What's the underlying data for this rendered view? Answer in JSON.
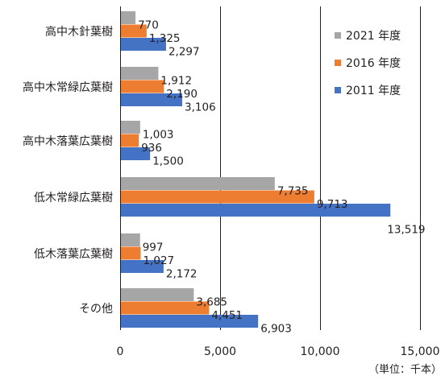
{
  "chart_data": {
    "type": "bar",
    "orientation": "horizontal",
    "categories": [
      "高中木針葉樹",
      "高中木常緑広葉樹",
      "高中木落葉広葉樹",
      "低木常緑広葉樹",
      "低木落葉広葉樹",
      "その他"
    ],
    "series": [
      {
        "name": "2021 年度",
        "color": "#a6a6a6",
        "values": [
          770,
          1912,
          1003,
          7735,
          997,
          3685
        ],
        "labels": [
          "770",
          "1,912",
          "1,003",
          "7,735",
          "997",
          "3,685"
        ]
      },
      {
        "name": "2016 年度",
        "color": "#ed7d31",
        "values": [
          1325,
          2190,
          936,
          9713,
          1027,
          4451
        ],
        "labels": [
          "1,325",
          "2,190",
          "936",
          "9,713",
          "1,027",
          "4,451"
        ]
      },
      {
        "name": "2011 年度",
        "color": "#4472c4",
        "values": [
          2297,
          3106,
          1500,
          13519,
          2172,
          6903
        ],
        "labels": [
          "2,297",
          "3,106",
          "1,500",
          "13,519",
          "2,172",
          "6,903"
        ]
      }
    ],
    "xlim": [
      0,
      15000
    ],
    "xticks": [
      0,
      5000,
      10000,
      15000
    ],
    "xtick_labels": [
      "0",
      "5,000",
      "10,000",
      "15,000"
    ],
    "unit_note": "（単位：千本）",
    "legend_position": "top-right",
    "grid": "vertical"
  }
}
